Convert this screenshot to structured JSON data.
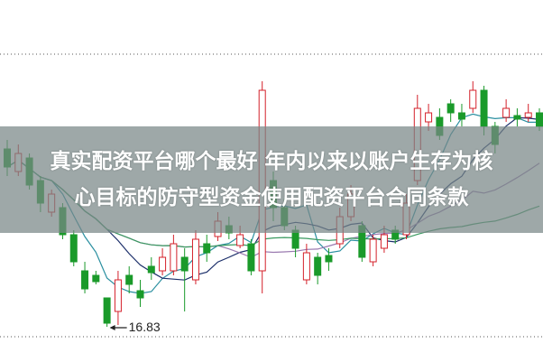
{
  "headline": {
    "line1": "真实配资平台哪个最好 年内以来以账户生存为核",
    "line2": "心目标的防守型资金使用配资平台合同条款"
  },
  "chart_data": {
    "type": "candlestick",
    "ohlc_fields": [
      "open",
      "close",
      "high",
      "low"
    ],
    "candles": [
      [
        18.8,
        18.6,
        18.9,
        18.5
      ],
      [
        18.55,
        18.75,
        18.85,
        18.5
      ],
      [
        18.7,
        18.4,
        18.75,
        18.35
      ],
      [
        18.45,
        18.2,
        18.5,
        18.1
      ],
      [
        18.1,
        18.3,
        18.35,
        18.05
      ],
      [
        18.15,
        17.85,
        18.2,
        17.8
      ],
      [
        17.85,
        17.55,
        17.9,
        17.5
      ],
      [
        17.45,
        17.25,
        17.55,
        17.2
      ],
      [
        17.4,
        17.33,
        17.45,
        17.3
      ],
      [
        17.15,
        16.87,
        17.15,
        16.83
      ],
      [
        17.0,
        17.35,
        17.45,
        16.85
      ],
      [
        17.4,
        17.3,
        17.5,
        17.2
      ],
      [
        17.23,
        17.15,
        17.35,
        17.05
      ],
      [
        17.5,
        17.43,
        17.6,
        17.35
      ],
      [
        17.45,
        17.6,
        17.7,
        17.4
      ],
      [
        17.45,
        17.75,
        17.85,
        17.4
      ],
      [
        17.6,
        17.45,
        17.7,
        17.0
      ],
      [
        17.35,
        17.8,
        17.9,
        17.3
      ],
      [
        17.75,
        17.65,
        17.85,
        17.55
      ],
      [
        17.83,
        18.0,
        18.1,
        17.78
      ],
      [
        17.95,
        17.87,
        18.05,
        17.8
      ],
      [
        17.73,
        17.85,
        17.95,
        17.7
      ],
      [
        17.75,
        17.45,
        17.8,
        17.4
      ],
      [
        17.45,
        19.45,
        19.55,
        17.2
      ],
      [
        18.45,
        18.15,
        18.55,
        18.0
      ],
      [
        18.15,
        17.95,
        18.25,
        17.9
      ],
      [
        17.9,
        17.7,
        17.95,
        17.6
      ],
      [
        17.35,
        17.65,
        17.75,
        17.3
      ],
      [
        17.6,
        17.4,
        17.65,
        17.3
      ],
      [
        17.62,
        17.55,
        17.7,
        17.45
      ],
      [
        17.75,
        18.05,
        18.15,
        17.7
      ],
      [
        18.05,
        18.3,
        18.4,
        18.0
      ],
      [
        17.95,
        17.6,
        18.0,
        17.55
      ],
      [
        17.55,
        17.8,
        17.85,
        17.5
      ],
      [
        17.7,
        17.85,
        17.95,
        17.65
      ],
      [
        17.9,
        17.8,
        17.95,
        17.75
      ],
      [
        17.85,
        18.2,
        18.3,
        17.8
      ],
      [
        18.45,
        19.25,
        19.4,
        18.4
      ],
      [
        19.1,
        19.2,
        19.3,
        19.0
      ],
      [
        19.15,
        18.95,
        19.25,
        18.9
      ],
      [
        19.3,
        19.2,
        19.35,
        19.1
      ],
      [
        19.2,
        19.13,
        19.3,
        19.05
      ],
      [
        19.25,
        19.45,
        19.55,
        19.2
      ],
      [
        19.45,
        19.05,
        19.5,
        18.95
      ],
      [
        19.05,
        18.85,
        19.1,
        18.75
      ],
      [
        19.15,
        19.25,
        19.35,
        19.1
      ],
      [
        19.17,
        19.13,
        19.25,
        19.05
      ],
      [
        19.15,
        19.2,
        19.3,
        19.1
      ],
      [
        19.2,
        19.05,
        19.25,
        19.0
      ]
    ],
    "moving_averages": [
      5,
      10,
      20,
      40
    ],
    "ylim": [
      16.44,
      20.45
    ],
    "grid": "dotted horizontal",
    "annotation": {
      "text": "16.83",
      "value": 16.83
    },
    "colors": {
      "up": "#d4202a",
      "down": "#1a9a2a",
      "ma": [
        "#2a8fa0",
        "#1c2f6a",
        "#9a7ab0",
        "#3a9a60"
      ],
      "banner": "#788686"
    }
  }
}
